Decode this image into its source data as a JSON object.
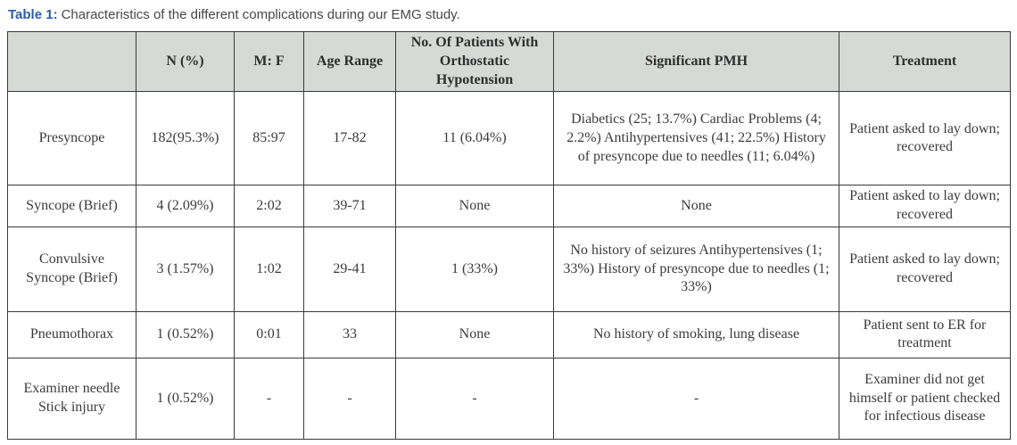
{
  "caption": {
    "label": "Table 1:",
    "text": "Characteristics of the different complications during our EMG study."
  },
  "colors": {
    "accent_blue": "#2b5cad",
    "header_bg": "#d6dad7",
    "border": "#3a3a3a",
    "body_text": "#3b3b3b"
  },
  "table": {
    "headers": [
      "",
      "N (%)",
      "M: F",
      "Age Range",
      "No. Of Patients With Orthostatic Hypotension",
      "Significant PMH",
      "Treatment"
    ],
    "rows": [
      [
        "Presyncope",
        "182(95.3%)",
        "85:97",
        "17-82",
        "11 (6.04%)",
        "Diabetics (25; 13.7%) Cardiac Problems (4; 2.2%) Antihypertensives (41; 22.5%) History of presyncope due to needles (11; 6.04%)",
        "Patient asked to lay down; recovered"
      ],
      [
        "Syncope (Brief)",
        "4 (2.09%)",
        "2:02",
        "39-71",
        "None",
        "None",
        "Patient asked to lay down; recovered"
      ],
      [
        "Convulsive Syncope (Brief)",
        "3 (1.57%)",
        "1:02",
        "29-41",
        "1 (33%)",
        "No history of seizures Antihypertensives (1; 33%) History of presyncope due to needles (1; 33%)",
        "Patient asked to lay down; recovered"
      ],
      [
        "Pneumothorax",
        "1 (0.52%)",
        "0:01",
        "33",
        "None",
        "No history of smoking, lung disease",
        "Patient sent to ER for treatment"
      ],
      [
        "Examiner needle Stick injury",
        "1 (0.52%)",
        "-",
        "-",
        "-",
        "-",
        "Examiner did not get himself or patient checked for infectious disease"
      ]
    ]
  }
}
